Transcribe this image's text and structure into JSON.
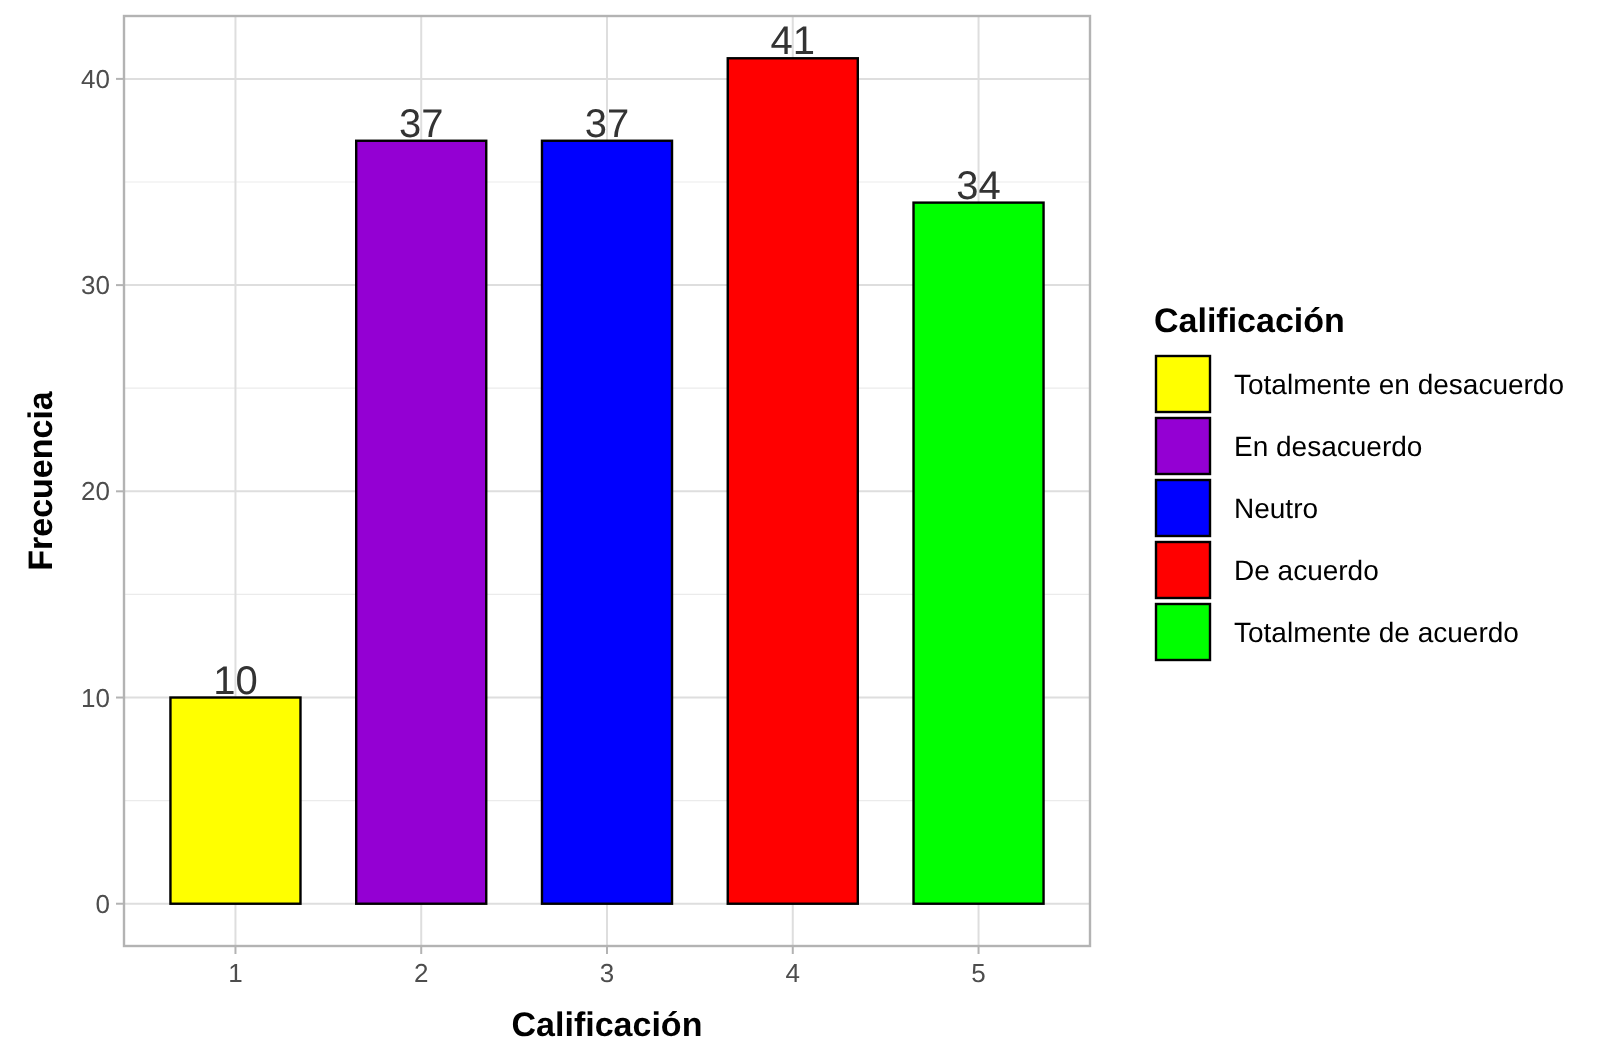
{
  "chart_data": {
    "type": "bar",
    "xlabel": "Calificación",
    "ylabel": "Frecuencia",
    "legend_title": "Calificación",
    "categories": [
      "1",
      "2",
      "3",
      "4",
      "5"
    ],
    "series": [
      {
        "name": "Totalmente en desacuerdo",
        "color": "#ffff00",
        "values": [
          10,
          null,
          null,
          null,
          null
        ]
      },
      {
        "name": "En desacuerdo",
        "color": "#9400d3",
        "values": [
          null,
          37,
          null,
          null,
          null
        ]
      },
      {
        "name": "Neutro",
        "color": "#0000ff",
        "values": [
          null,
          null,
          37,
          null,
          null
        ]
      },
      {
        "name": "De acuerdo",
        "color": "#ff0000",
        "values": [
          null,
          null,
          null,
          41,
          null
        ]
      },
      {
        "name": "Totalmente de acuerdo",
        "color": "#00ff00",
        "values": [
          null,
          null,
          null,
          null,
          34
        ]
      }
    ],
    "ylim": [
      -2.05,
      43.05
    ],
    "yticks": [
      0,
      10,
      20,
      30,
      40
    ],
    "grid": true,
    "legend": "right",
    "data_labels": true
  }
}
